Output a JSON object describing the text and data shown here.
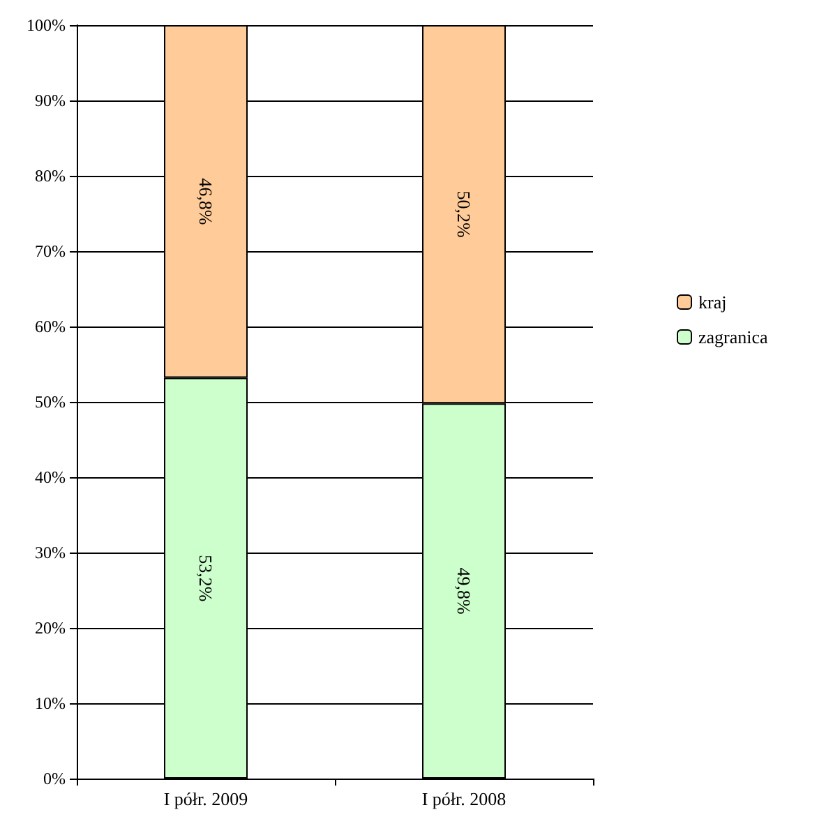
{
  "chart_data": {
    "type": "bar",
    "stacked": true,
    "categories": [
      "I półr. 2009",
      "I półr. 2008"
    ],
    "series": [
      {
        "name": "zagranica",
        "color": "#ccffcc",
        "values": [
          53.2,
          49.8
        ],
        "value_labels": [
          "53,2%",
          "49,8%"
        ]
      },
      {
        "name": "kraj",
        "color": "#ffcc99",
        "values": [
          46.8,
          50.2
        ],
        "value_labels": [
          "46,8%",
          "50,2%"
        ]
      }
    ],
    "ylim": [
      0,
      100
    ],
    "yticks": [
      {
        "value": 0,
        "label": "0%"
      },
      {
        "value": 10,
        "label": "10%"
      },
      {
        "value": 20,
        "label": "20%"
      },
      {
        "value": 30,
        "label": "30%"
      },
      {
        "value": 40,
        "label": "40%"
      },
      {
        "value": 50,
        "label": "50%"
      },
      {
        "value": 60,
        "label": "60%"
      },
      {
        "value": 70,
        "label": "70%"
      },
      {
        "value": 80,
        "label": "80%"
      },
      {
        "value": 90,
        "label": "90%"
      },
      {
        "value": 100,
        "label": "100%"
      }
    ],
    "grid": "y",
    "legend": "right"
  }
}
